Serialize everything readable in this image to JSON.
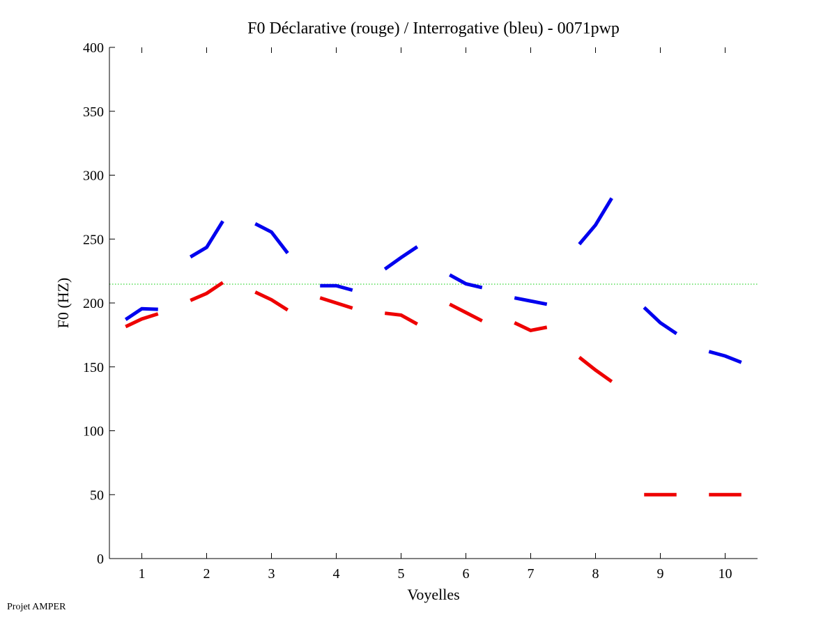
{
  "chart_data": {
    "type": "line",
    "title": "F0 Déclarative (rouge) / Interrogative (bleu) - 0071pwp",
    "xlabel": "Voyelles",
    "ylabel": "F0 (HZ)",
    "xlim": [
      0.5,
      10.5
    ],
    "ylim": [
      0,
      400
    ],
    "xticks": [
      "1",
      "2",
      "3",
      "4",
      "5",
      "6",
      "7",
      "8",
      "9",
      "10"
    ],
    "yticks": [
      "0",
      "50",
      "100",
      "150",
      "200",
      "250",
      "300",
      "350",
      "400"
    ],
    "grid": false,
    "reference_line": {
      "value": 214.7,
      "color": "#00cc00",
      "style": "dotted"
    },
    "series": [
      {
        "name": "Interrogative (bleu)",
        "color": "#0000ee",
        "segments": [
          [
            187,
            195.5,
            195
          ],
          [
            236,
            243.5,
            264
          ],
          [
            262,
            255.5,
            239
          ],
          [
            213.5,
            213.5,
            210
          ],
          [
            226.5,
            235.5,
            244
          ],
          [
            222,
            215,
            212
          ],
          [
            204,
            201.5,
            199
          ],
          [
            246,
            261,
            282
          ],
          [
            196.5,
            184.5,
            176
          ],
          [
            162,
            158.5,
            153.5
          ]
        ]
      },
      {
        "name": "Déclarative (rouge)",
        "color": "#ee0000",
        "segments": [
          [
            181.5,
            187.5,
            191.5
          ],
          [
            202,
            207.5,
            216
          ],
          [
            208.5,
            202.5,
            194.5
          ],
          [
            204,
            200,
            196
          ],
          [
            192,
            190.5,
            183.5
          ],
          [
            199,
            192.5,
            186
          ],
          [
            184.5,
            178.5,
            181
          ],
          [
            157.5,
            147.5,
            138.5
          ],
          [
            50,
            50,
            50
          ],
          [
            50,
            50,
            50
          ]
        ]
      }
    ]
  },
  "footer": "Projet AMPER"
}
